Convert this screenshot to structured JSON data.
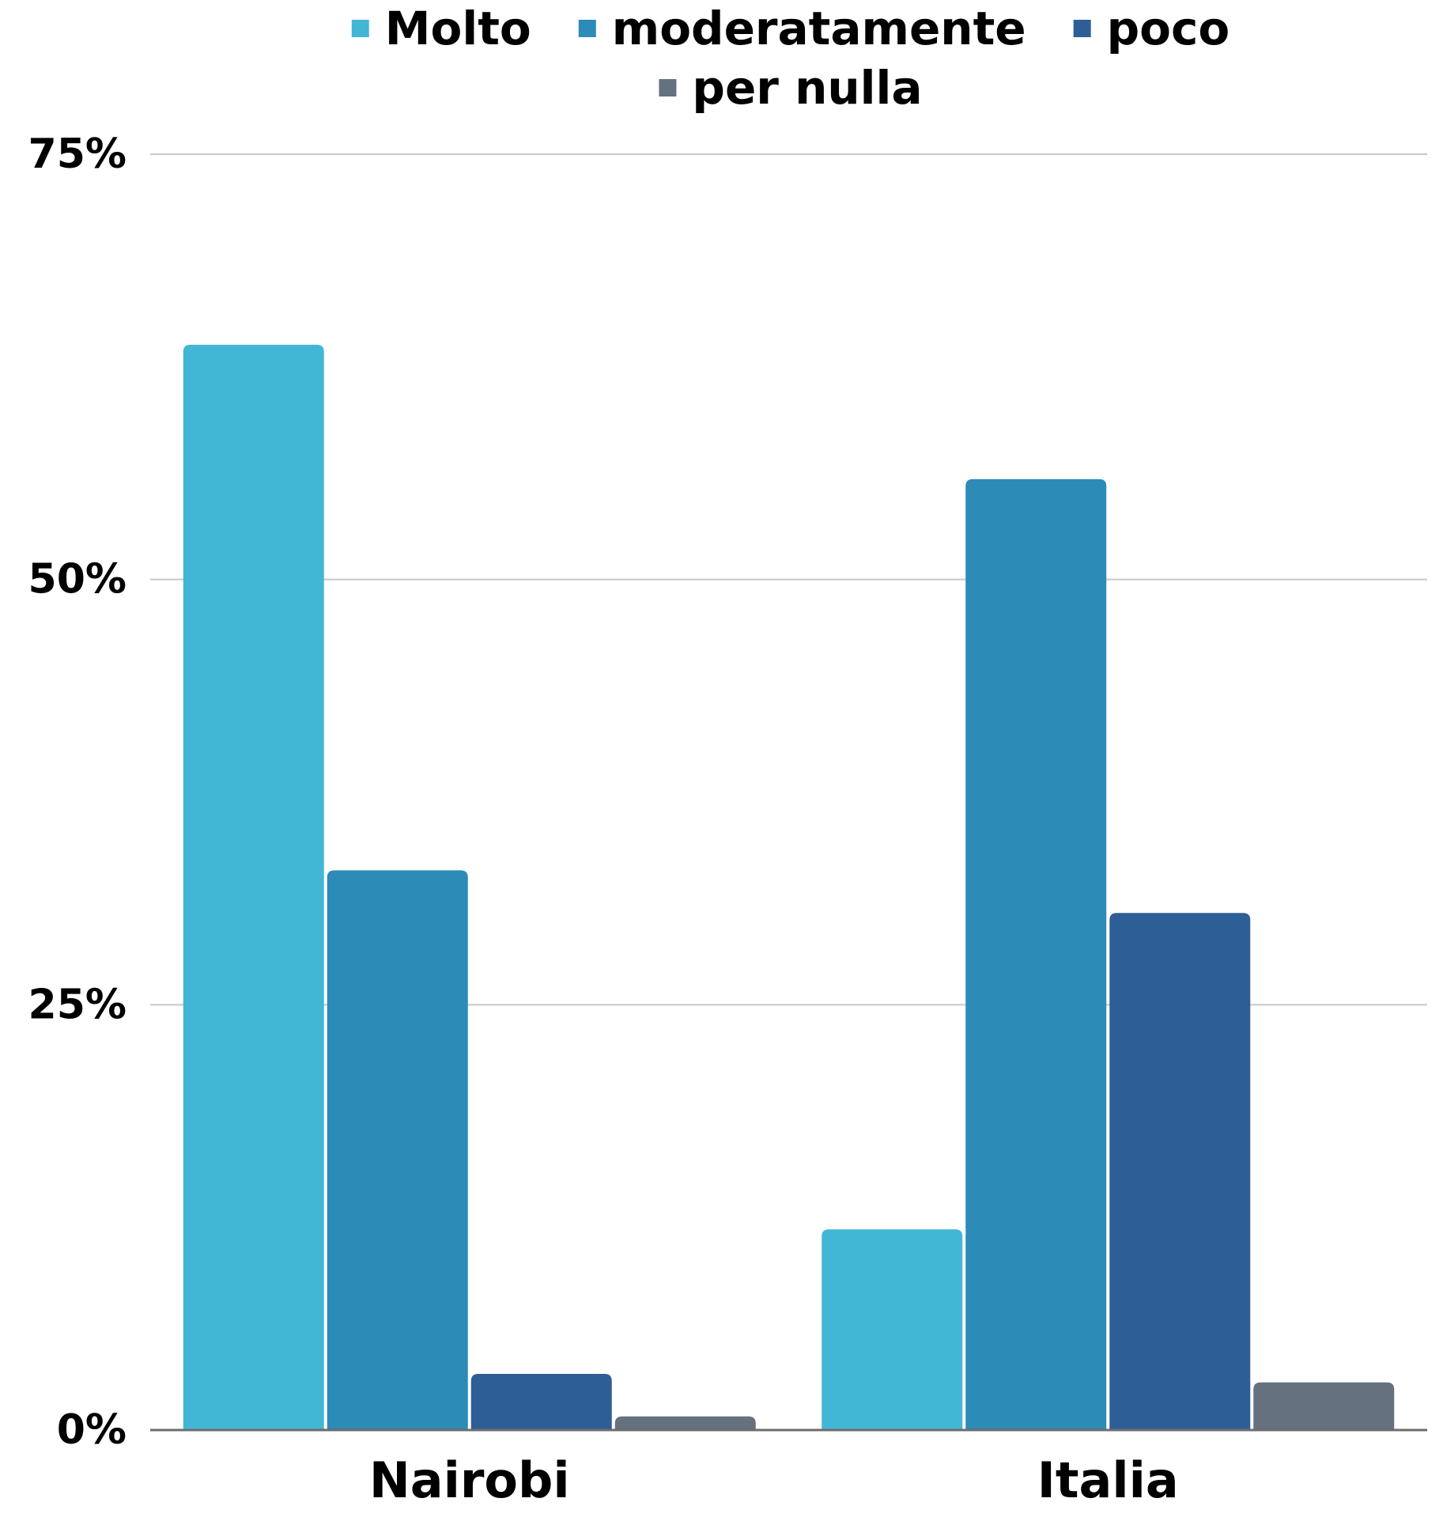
{
  "chart_data": {
    "type": "bar",
    "categories": [
      "Nairobi",
      "Italia"
    ],
    "series": [
      {
        "name": "Molto",
        "values": [
          63.8,
          11.8
        ],
        "color": "#42b6d5"
      },
      {
        "name": "moderatamente",
        "values": [
          32.9,
          55.9
        ],
        "color": "#2d8bb8"
      },
      {
        "name": "poco",
        "values": [
          3.3,
          30.4
        ],
        "color": "#2e5e96"
      },
      {
        "name": "per nulla",
        "values": [
          0.8,
          2.8
        ],
        "color": "#65717e"
      }
    ],
    "y_ticks": [
      "0%",
      "25%",
      "50%",
      "75%"
    ],
    "ylim": [
      0,
      75
    ],
    "grid": true,
    "legend_position": "top-center",
    "title": "",
    "xlabel": "",
    "ylabel": ""
  }
}
